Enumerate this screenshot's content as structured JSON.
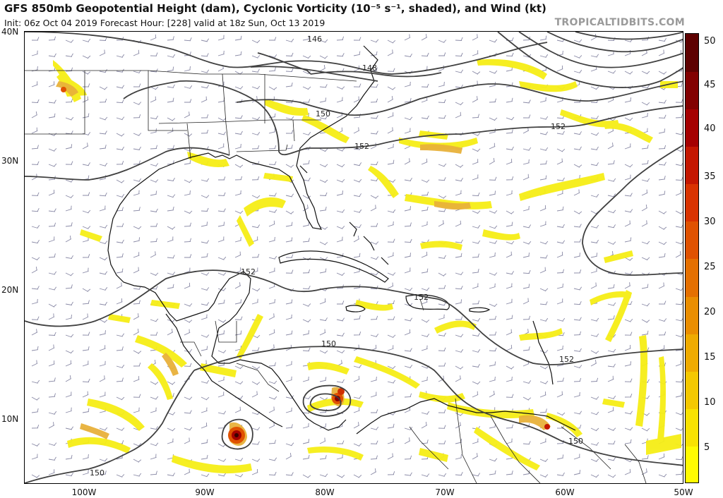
{
  "header": {
    "title": "GFS 850mb Geopotential Height (dam), Cyclonic Vorticity (10⁻⁵ s⁻¹, shaded), and Wind (kt)",
    "subtitle": "Init: 06z Oct 04 2019   Forecast Hour: [228]   valid at 18z Sun, Oct 13 2019",
    "credit": "TROPICALTIDBITS.COM"
  },
  "axes": {
    "lat_labels": [
      "40N",
      "30N",
      "20N",
      "10N"
    ],
    "lon_labels": [
      "100W",
      "90W",
      "80W",
      "70W",
      "60W",
      "50W"
    ]
  },
  "contour_labels": [
    "146",
    "148",
    "150",
    "152",
    "152",
    "152",
    "152",
    "152",
    "150",
    "150",
    "150"
  ],
  "colorbar": {
    "labels": [
      "50",
      "45",
      "40",
      "35",
      "30",
      "25",
      "20",
      "15",
      "10",
      "5"
    ],
    "colors": [
      "#fffb00",
      "#f9e200",
      "#f4c800",
      "#efab00",
      "#ea8e00",
      "#e57000",
      "#e05200",
      "#d93300",
      "#c41700",
      "#a50000",
      "#820000",
      "#5e0000"
    ]
  },
  "colors": {
    "vort_light": "#f6ee16",
    "vort_mid": "#e8b13a",
    "vort_strong": "#c21a00",
    "contour": "#404040",
    "coast": "#111111",
    "wind_barb": "#8a8aa6"
  }
}
